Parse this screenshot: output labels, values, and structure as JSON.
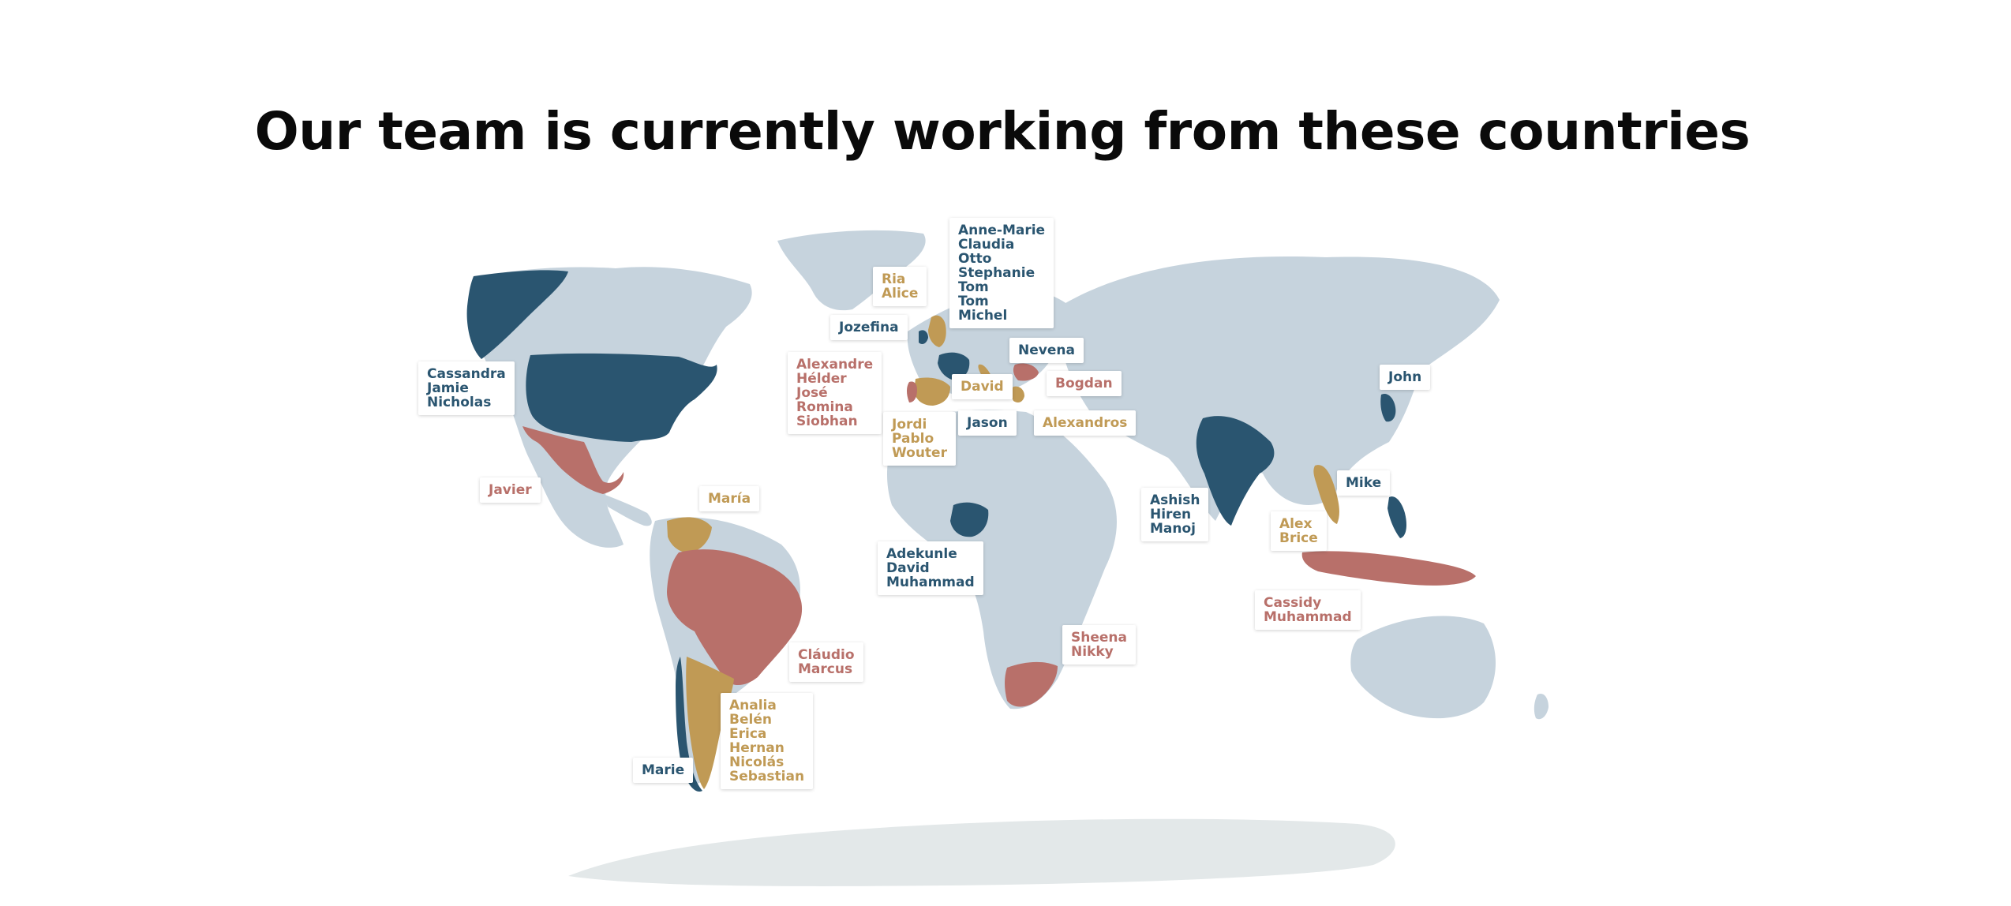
{
  "header": {
    "title": "Our team is currently working from these countries"
  },
  "colors": {
    "base_land": "#c6d3dd",
    "antarctica": "#e3e8e9",
    "navy": "#2a5570",
    "red": "#b8706a",
    "gold": "#c09a55"
  },
  "labels": [
    {
      "id": "usa",
      "color": "navy",
      "names": [
        "Cassandra",
        "Jamie",
        "Nicholas"
      ]
    },
    {
      "id": "mexico",
      "color": "red",
      "names": [
        "Javier"
      ]
    },
    {
      "id": "venezuela",
      "color": "gold",
      "names": [
        "María"
      ]
    },
    {
      "id": "brazil",
      "color": "red",
      "names": [
        "Cláudio",
        "Marcus"
      ]
    },
    {
      "id": "argentina",
      "color": "gold",
      "names": [
        "Analia",
        "Belén",
        "Erica",
        "Hernan",
        "Nicolás",
        "Sebastian"
      ]
    },
    {
      "id": "chile",
      "color": "navy",
      "names": [
        "Marie"
      ]
    },
    {
      "id": "uk",
      "color": "gold",
      "names": [
        "Ria",
        "Alice"
      ]
    },
    {
      "id": "ireland",
      "color": "navy",
      "names": [
        "Jozefina"
      ]
    },
    {
      "id": "france",
      "color": "navy",
      "names": [
        "Anne-Marie",
        "Claudia",
        "Otto",
        "Stephanie",
        "Tom",
        "Tom",
        "Michel"
      ]
    },
    {
      "id": "portugal",
      "color": "red",
      "names": [
        "Alexandre",
        "Hélder",
        "José",
        "Romina",
        "Siobhan"
      ]
    },
    {
      "id": "spain",
      "color": "gold",
      "names": [
        "Jordi",
        "Pablo",
        "Wouter"
      ]
    },
    {
      "id": "italy",
      "color": "gold",
      "names": [
        "David"
      ]
    },
    {
      "id": "malta",
      "color": "navy",
      "names": [
        "Jason"
      ]
    },
    {
      "id": "serbia",
      "color": "navy",
      "names": [
        "Nevena"
      ]
    },
    {
      "id": "romania",
      "color": "red",
      "names": [
        "Bogdan"
      ]
    },
    {
      "id": "greece",
      "color": "gold",
      "names": [
        "Alexandros"
      ]
    },
    {
      "id": "nigeria",
      "color": "navy",
      "names": [
        "Adekunle",
        "David",
        "Muhammad"
      ]
    },
    {
      "id": "south-africa",
      "color": "red",
      "names": [
        "Sheena",
        "Nikky"
      ]
    },
    {
      "id": "india",
      "color": "navy",
      "names": [
        "Ashish",
        "Hiren",
        "Manoj"
      ]
    },
    {
      "id": "vietnam",
      "color": "gold",
      "names": [
        "Alex",
        "Brice"
      ]
    },
    {
      "id": "philippines",
      "color": "navy",
      "names": [
        "Mike"
      ]
    },
    {
      "id": "indonesia",
      "color": "red",
      "names": [
        "Cassidy",
        "Muhammad"
      ]
    },
    {
      "id": "korea",
      "color": "navy",
      "names": [
        "John"
      ]
    }
  ]
}
